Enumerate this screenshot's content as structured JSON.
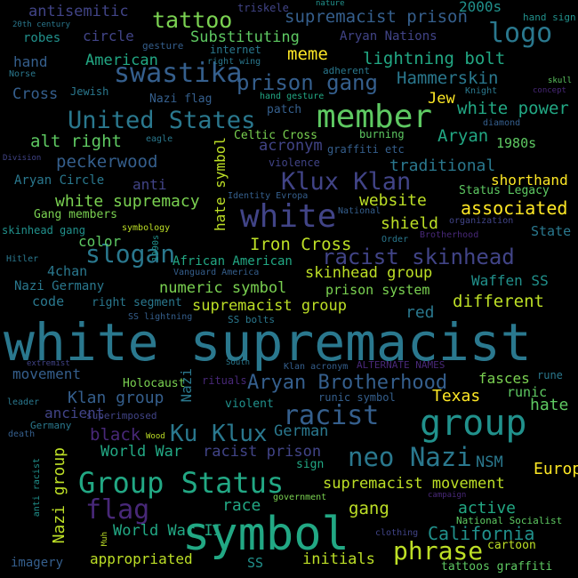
{
  "words": [
    {
      "text": "white supremacist",
      "color": "#2a788e"
    },
    {
      "text": "symbol",
      "color": "#22a884"
    },
    {
      "text": "group",
      "color": "#21918c"
    },
    {
      "text": "member",
      "color": "#5ec962"
    },
    {
      "text": "white",
      "color": "#414487"
    },
    {
      "text": "Group Status",
      "color": "#22a884"
    },
    {
      "text": "United States",
      "color": "#2a788e"
    },
    {
      "text": "swastika",
      "color": "#355f8d"
    },
    {
      "text": "logo",
      "color": "#2a788e"
    },
    {
      "text": "neo Nazi",
      "color": "#2a788e"
    },
    {
      "text": "Klux Klan",
      "color": "#414487"
    },
    {
      "text": "racist skinhead",
      "color": "#414487"
    },
    {
      "text": "racist",
      "color": "#355f8d"
    },
    {
      "text": "Ku Klux",
      "color": "#2a788e"
    },
    {
      "text": "Aryan Brotherhood",
      "color": "#355f8d"
    },
    {
      "text": "phrase",
      "color": "#bddf26"
    },
    {
      "text": "slogan",
      "color": "#2a788e"
    },
    {
      "text": "flag",
      "color": "#482878"
    },
    {
      "text": "prison gang",
      "color": "#355f8d"
    },
    {
      "text": "tattoo",
      "color": "#7ad151"
    },
    {
      "text": "California",
      "color": "#21918c"
    },
    {
      "text": "supremacist prison",
      "color": "#355f8d"
    },
    {
      "text": "Hammerskin",
      "color": "#2a788e"
    },
    {
      "text": "lightning bolt",
      "color": "#22a884"
    },
    {
      "text": "white power",
      "color": "#22a884"
    },
    {
      "text": "Iron Cross",
      "color": "#bddf26"
    },
    {
      "text": "alt right",
      "color": "#5ec962"
    },
    {
      "text": "peckerwood",
      "color": "#355f8d"
    },
    {
      "text": "supremacist movement",
      "color": "#bddf26"
    },
    {
      "text": "white supremacy",
      "color": "#7ad151"
    },
    {
      "text": "website",
      "color": "#bddf26"
    },
    {
      "text": "associated",
      "color": "#fde725"
    },
    {
      "text": "shield",
      "color": "#bddf26"
    },
    {
      "text": "skinhead group",
      "color": "#bddf26"
    },
    {
      "text": "supremacist group",
      "color": "#bddf26"
    },
    {
      "text": "numeric symbol",
      "color": "#7ad151"
    },
    {
      "text": "different",
      "color": "#bddf26"
    },
    {
      "text": "Aryan",
      "color": "#22a884"
    },
    {
      "text": "meme",
      "color": "#fde725"
    },
    {
      "text": "American",
      "color": "#22a884"
    },
    {
      "text": "Substituting",
      "color": "#5ec962"
    },
    {
      "text": "acronym",
      "color": "#414487"
    },
    {
      "text": "traditional",
      "color": "#2a788e"
    },
    {
      "text": "shorthand",
      "color": "#fde725"
    },
    {
      "text": "hate symbol",
      "color": "#bddf26"
    },
    {
      "text": "Nazi group",
      "color": "#bddf26"
    },
    {
      "text": "gang",
      "color": "#bddf26"
    },
    {
      "text": "active",
      "color": "#22a884"
    },
    {
      "text": "World War II",
      "color": "#22a884"
    },
    {
      "text": "World War",
      "color": "#22a884"
    },
    {
      "text": "racist prison",
      "color": "#414487"
    },
    {
      "text": "appropriated",
      "color": "#bddf26"
    },
    {
      "text": "initials",
      "color": "#bddf26"
    },
    {
      "text": "Europe",
      "color": "#fde725"
    },
    {
      "text": "hate",
      "color": "#5ec962"
    },
    {
      "text": "Texas",
      "color": "#fde725"
    },
    {
      "text": "fasces",
      "color": "#7ad151"
    },
    {
      "text": "German",
      "color": "#2a788e"
    },
    {
      "text": "race",
      "color": "#22a884"
    },
    {
      "text": "black",
      "color": "#482878"
    },
    {
      "text": "Waffen SS",
      "color": "#21918c"
    },
    {
      "text": "red",
      "color": "#2a788e"
    },
    {
      "text": "Klan group",
      "color": "#355f8d"
    },
    {
      "text": "ancient",
      "color": "#414487"
    },
    {
      "text": "movement",
      "color": "#355f8d"
    },
    {
      "text": "Nazi",
      "color": "#2a788e"
    },
    {
      "text": "NSM",
      "color": "#2a788e"
    },
    {
      "text": "color",
      "color": "#5ec962"
    },
    {
      "text": "circle",
      "color": "#414487"
    },
    {
      "text": "antisemitic",
      "color": "#414487"
    },
    {
      "text": "2000s",
      "color": "#21918c"
    },
    {
      "text": "Aryan Nations",
      "color": "#414487"
    },
    {
      "text": "Cross",
      "color": "#355f8d"
    },
    {
      "text": "hand",
      "color": "#355f8d"
    },
    {
      "text": "Jew",
      "color": "#fde725"
    },
    {
      "text": "robes",
      "color": "#21918c"
    },
    {
      "text": "Aryan Circle",
      "color": "#2a788e"
    },
    {
      "text": "anti",
      "color": "#414487"
    },
    {
      "text": "Gang members",
      "color": "#7ad151"
    },
    {
      "text": "4chan",
      "color": "#2a788e"
    },
    {
      "text": "Nazi Germany",
      "color": "#2a788e"
    },
    {
      "text": "code",
      "color": "#2a788e"
    },
    {
      "text": "right segment",
      "color": "#2a788e"
    },
    {
      "text": "prison system",
      "color": "#7ad151"
    },
    {
      "text": "African American",
      "color": "#22a884"
    },
    {
      "text": "Holocaust",
      "color": "#7ad151"
    },
    {
      "text": "SS",
      "color": "#21918c"
    },
    {
      "text": "Celtic Cross",
      "color": "#7ad151"
    },
    {
      "text": "patch",
      "color": "#355f8d"
    },
    {
      "text": "1980s",
      "color": "#5ec962"
    },
    {
      "text": "Status Legacy",
      "color": "#5ec962"
    },
    {
      "text": "State",
      "color": "#2a788e"
    },
    {
      "text": "rune",
      "color": "#2a788e"
    },
    {
      "text": "runic",
      "color": "#5ec962"
    },
    {
      "text": "sign",
      "color": "#22a884"
    },
    {
      "text": "tattoos graffiti",
      "color": "#5ec962"
    },
    {
      "text": "imagery",
      "color": "#355f8d"
    },
    {
      "text": "violent",
      "color": "#21918c"
    },
    {
      "text": "runic symbol",
      "color": "#355f8d"
    },
    {
      "text": "cartoon",
      "color": "#bddf26"
    },
    {
      "text": "National Socialist",
      "color": "#5ec962"
    },
    {
      "text": "graffiti etc",
      "color": "#355f8d"
    },
    {
      "text": "burning",
      "color": "#5ec962"
    },
    {
      "text": "violence",
      "color": "#414487"
    },
    {
      "text": "Nazi flag",
      "color": "#355f8d"
    },
    {
      "text": "triskele",
      "color": "#414487"
    },
    {
      "text": "nature",
      "color": "#21918c"
    },
    {
      "text": "hand sign",
      "color": "#21918c"
    },
    {
      "text": "skull",
      "color": "#5ec962"
    },
    {
      "text": "concept",
      "color": "#482878"
    },
    {
      "text": "Knight",
      "color": "#2a788e"
    },
    {
      "text": "diamond",
      "color": "#355f8d"
    },
    {
      "text": "Identity Evropa",
      "color": "#355f8d"
    },
    {
      "text": "National",
      "color": "#355f8d"
    },
    {
      "text": "organization",
      "color": "#414487"
    },
    {
      "text": "Order",
      "color": "#2a788e"
    },
    {
      "text": "Brotherhood",
      "color": "#482878"
    },
    {
      "text": "symbology",
      "color": "#bddf26"
    },
    {
      "text": "skinhead gang",
      "color": "#21918c"
    },
    {
      "text": "Division",
      "color": "#414487"
    },
    {
      "text": "Hitler",
      "color": "#2a788e"
    },
    {
      "text": "1990s",
      "color": "#21918c"
    },
    {
      "text": "Vanguard America",
      "color": "#355f8d"
    },
    {
      "text": "SS lightning",
      "color": "#355f8d"
    },
    {
      "text": "SS bolts",
      "color": "#2a788e"
    },
    {
      "text": "ALTERNATE NAMES",
      "color": "#482878"
    },
    {
      "text": "Klan acronym",
      "color": "#355f8d"
    },
    {
      "text": "South",
      "color": "#2a788e"
    },
    {
      "text": "rituals",
      "color": "#482878"
    },
    {
      "text": "extremist",
      "color": "#414487"
    },
    {
      "text": "leader",
      "color": "#2a788e"
    },
    {
      "text": "superimposed",
      "color": "#414487"
    },
    {
      "text": "Germany",
      "color": "#2a788e"
    },
    {
      "text": "death",
      "color": "#355f8d"
    },
    {
      "text": "Wood",
      "color": "#bddf26"
    },
    {
      "text": "anti racist",
      "color": "#21918c"
    },
    {
      "text": "government",
      "color": "#7ad151"
    },
    {
      "text": "campaign",
      "color": "#482878"
    },
    {
      "text": "clothing",
      "color": "#414487"
    },
    {
      "text": "Muh",
      "color": "#bddf26"
    },
    {
      "text": "eagle",
      "color": "#2a788e"
    },
    {
      "text": "Jewish",
      "color": "#2a788e"
    },
    {
      "text": "Norse",
      "color": "#2a788e"
    },
    {
      "text": "gesture",
      "color": "#355f8d"
    },
    {
      "text": "20th century",
      "color": "#2a788e"
    },
    {
      "text": "internet",
      "color": "#2a788e"
    },
    {
      "text": "right wing",
      "color": "#2a788e"
    },
    {
      "text": "adherent",
      "color": "#2a788e"
    },
    {
      "text": "hand gesture",
      "color": "#22a884"
    }
  ]
}
